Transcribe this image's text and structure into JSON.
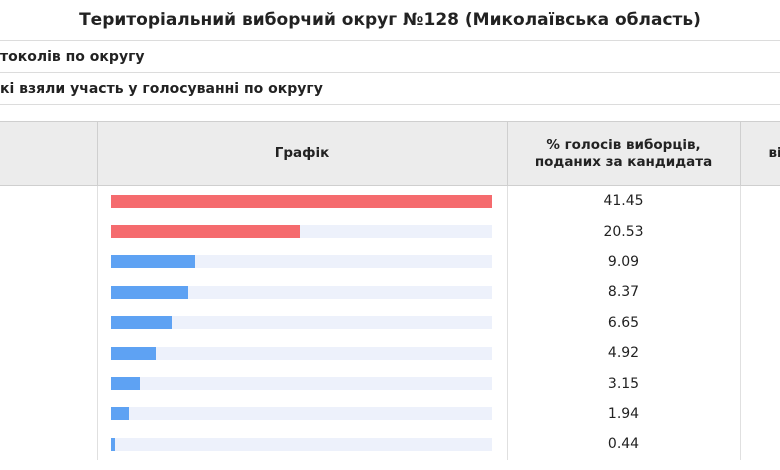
{
  "title": "Територіальний виборчий округ №128 (Миколаївська область)",
  "info_rows": [
    "токолів по округу",
    "кі взяли участь у голосуванні по округу"
  ],
  "table": {
    "headers": {
      "chart": "Графік",
      "percent_line1": "% голосів виборців,",
      "percent_line2": "поданих за кандидата",
      "last": "ві"
    }
  },
  "colors": {
    "leading": "#f56b6e",
    "other": "#5ea2f3",
    "track": "#edf1fb"
  },
  "chart_data": {
    "type": "bar",
    "orientation": "horizontal",
    "values": [
      41.45,
      20.53,
      9.09,
      8.37,
      6.65,
      4.92,
      3.15,
      1.94,
      0.44
    ],
    "value_labels": [
      "41.45",
      "20.53",
      "9.09",
      "8.37",
      "6.65",
      "4.92",
      "3.15",
      "1.94",
      "0.44"
    ],
    "highlighted_top": 2,
    "xlim": [
      0,
      41.45
    ]
  }
}
